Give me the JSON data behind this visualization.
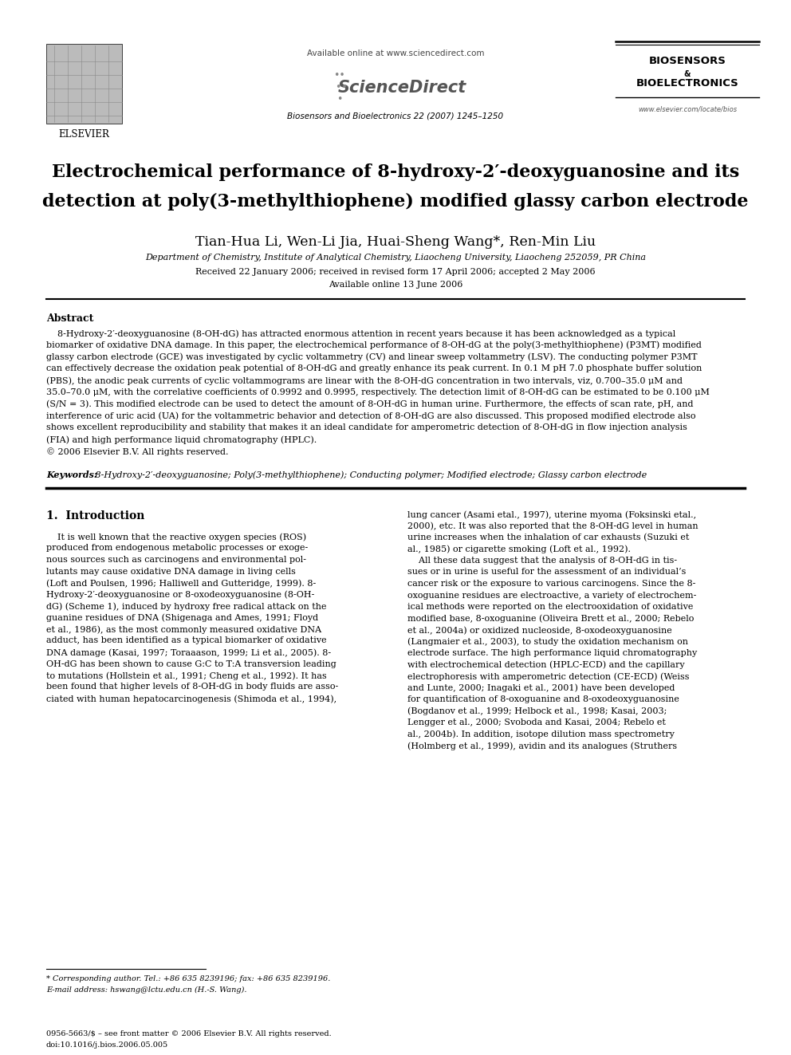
{
  "background_color": "#ffffff",
  "page_width": 9.92,
  "page_height": 13.23,
  "dpi": 100,
  "header": {
    "elsevier_text": "ELSEVIER",
    "available_online": "Available online at www.sciencedirect.com",
    "sciencedirect_text": "ScienceDirect",
    "journal_line": "Biosensors and Bioelectronics 22 (2007) 1245–1250",
    "biosensors_line1": "BIOSENSORS",
    "biosensors_amp": "&",
    "biosensors_line2": "BIOELECTRONICS",
    "website": "www.elsevier.com/locate/bios"
  },
  "title_line1": "Electrochemical performance of 8-hydroxy-2′-deoxyguanosine and its",
  "title_line2": "detection at poly(3-methylthiophene) modified glassy carbon electrode",
  "authors_plain": "Tian-Hua Li, Wen-Li Jia, Huai-Sheng Wang",
  "authors_star": "*",
  "authors_end": ", Ren-Min Liu",
  "affiliation": "Department of Chemistry, Institute of Analytical Chemistry, Liaocheng University, Liaocheng 252059, PR China",
  "received": "Received 22 January 2006; received in revised form 17 April 2006; accepted 2 May 2006",
  "available_online2": "Available online 13 June 2006",
  "abstract_title": "Abstract",
  "abstract_body": "    8-Hydroxy-2′-deoxyguanosine (8-OH-dG) has attracted enormous attention in recent years because it has been acknowledged as a typical biomarker of oxidative DNA damage. In this paper, the electrochemical performance of 8-OH-dG at the poly(3-methylthiophene) (P3MT) modified glassy carbon electrode (GCE) was investigated by cyclic voltammetry (CV) and linear sweep voltammetry (LSV). The conducting polymer P3MT can effectively decrease the oxidation peak potential of 8-OH-dG and greatly enhance its peak current. In 0.1 M pH 7.0 phosphate buffer solution (PBS), the anodic peak currents of cyclic voltammograms are linear with the 8-OH-dG concentration in two intervals, viz, 0.700–35.0 μM and 35.0–70.0 μM, with the correlative coefficients of 0.9992 and 0.9995, respectively. The detection limit of 8-OH-dG can be estimated to be 0.100 μM (S/N = 3). This modified electrode can be used to detect the amount of 8-OH-dG in human urine. Furthermore, the effects of scan rate, pH, and interference of uric acid (UA) for the voltammetric behavior and detection of 8-OH-dG are also discussed. This proposed modified electrode also shows excellent reproducibility and stability that makes it an ideal candidate for amperometric detection of 8-OH-dG in flow injection analysis (FIA) and high performance liquid chromatography (HPLC).\n© 2006 Elsevier B.V. All rights reserved.",
  "keywords_label": "Keywords:",
  "keywords_text": " 8-Hydroxy-2′-deoxyguanosine; Poly(3-methylthiophene); Conducting polymer; Modified electrode; Glassy carbon electrode",
  "section1_title": "1.  Introduction",
  "col1_text": "    It is well known that the reactive oxygen species (ROS)\nproduced from endogenous metabolic processes or exoge-\nnous sources such as carcinogens and environmental pol-\nlutants may cause oxidative DNA damage in living cells\n(Loft and Poulsen, 1996; Halliwell and Gutteridge, 1999). 8-\nHydroxy-2′-deoxyguanosine or 8-oxodeoxyguanosine (8-OH-\ndG) (Scheme 1), induced by hydroxy free radical attack on the\nguanine residues of DNA (Shigenaga and Ames, 1991; Floyd\net al., 1986), as the most commonly measured oxidative DNA\nadduct, has been identified as a typical biomarker of oxidative\nDNA damage (Kasai, 1997; Toraaason, 1999; Li et al., 2005). 8-\nOH-dG has been shown to cause G:C to T:A transversion leading\nto mutations (Hollstein et al., 1991; Cheng et al., 1992). It has\nbeen found that higher levels of 8-OH-dG in body fluids are asso-\nciated with human hepatocarcinogenesis (Shimoda et al., 1994),",
  "col2_text": "lung cancer (Asami etal., 1997), uterine myoma (Foksinski etal.,\n2000), etc. It was also reported that the 8-OH-dG level in human\nurine increases when the inhalation of car exhausts (Suzuki et\nal., 1985) or cigarette smoking (Loft et al., 1992).\n    All these data suggest that the analysis of 8-OH-dG in tis-\nsues or in urine is useful for the assessment of an individual’s\ncancer risk or the exposure to various carcinogens. Since the 8-\noxoguanine residues are electroactive, a variety of electrochem-\nical methods were reported on the electrooxidation of oxidative\nmodified base, 8-oxoguanine (Oliveira Brett et al., 2000; Rebelo\net al., 2004a) or oxidized nucleoside, 8-oxodeoxyguanosine\n(Langmaier et al., 2003), to study the oxidation mechanism on\nelectrode surface. The high performance liquid chromatography\nwith electrochemical detection (HPLC-ECD) and the capillary\nelectrophoresis with amperometric detection (CE-ECD) (Weiss\nand Lunte, 2000; Inagaki et al., 2001) have been developed\nfor quantification of 8-oxoguanine and 8-oxodeoxyguanosine\n(Bogdanov et al., 1999; Helbock et al., 1998; Kasai, 2003;\nLengger et al., 2000; Svoboda and Kasai, 2004; Rebelo et\nal., 2004b). In addition, isotope dilution mass spectrometry\n(Holmberg et al., 1999), avidin and its analogues (Struthers",
  "footnote_line": "* Corresponding author. Tel.: +86 635 8239196; fax: +86 635 8239196.",
  "footnote_email": "E-mail address: hswang@lctu.edu.cn (H.-S. Wang).",
  "issn_line": "0956-5663/$ – see front matter © 2006 Elsevier B.V. All rights reserved.",
  "doi_line": "doi:10.1016/j.bios.2006.05.005"
}
